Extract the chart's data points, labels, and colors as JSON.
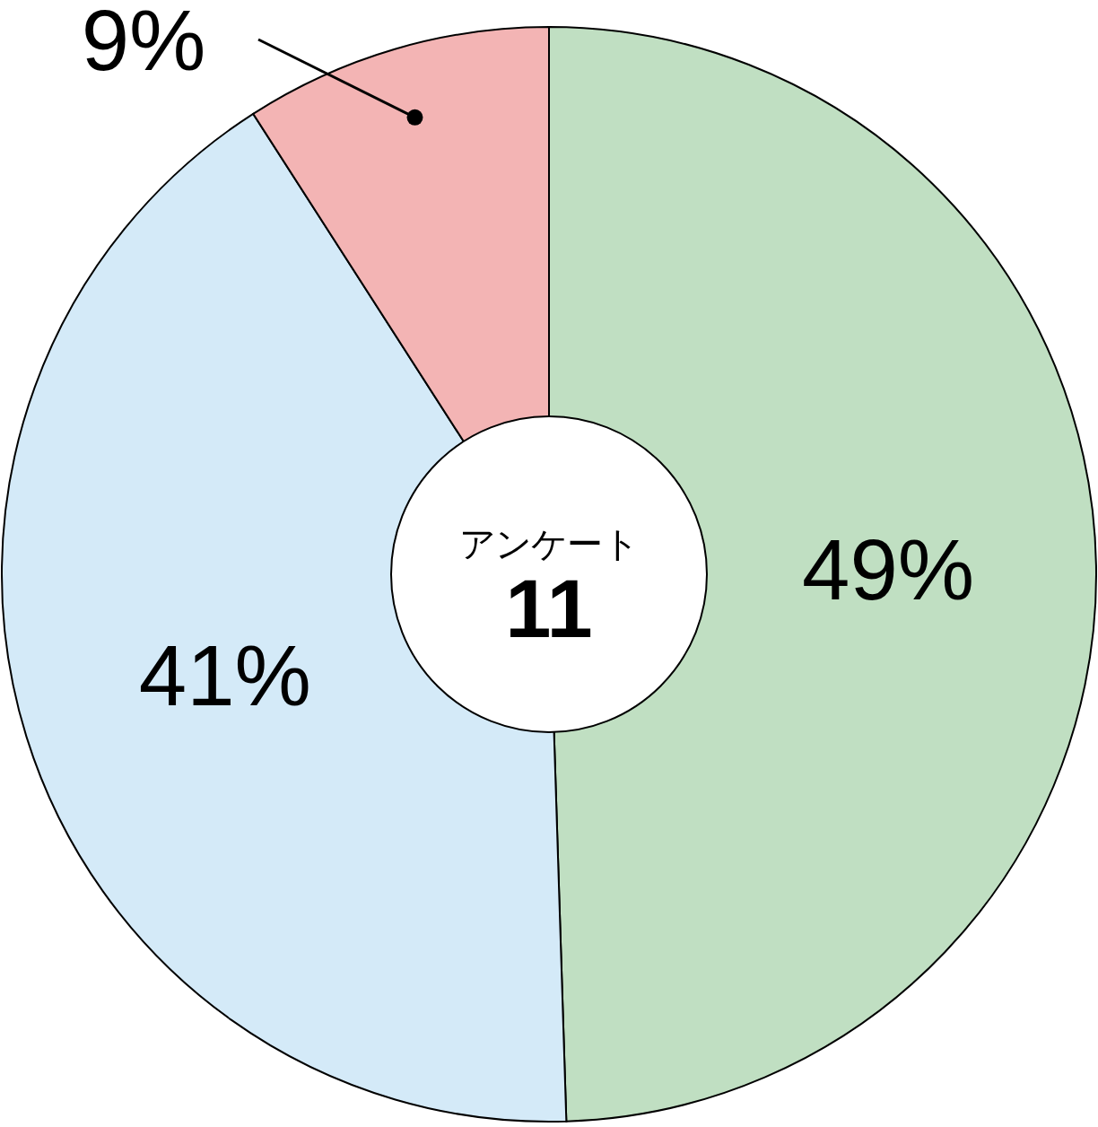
{
  "chart_data": {
    "type": "donut",
    "title": "アンケート",
    "subtitle": "11",
    "categories": [
      null,
      null,
      null
    ],
    "values": [
      49,
      41,
      9
    ],
    "colors": [
      "#c0dfc2",
      "#d4eaf8",
      "#f3b4b4"
    ],
    "value_labels": [
      "49%",
      "41%",
      "9%"
    ]
  }
}
